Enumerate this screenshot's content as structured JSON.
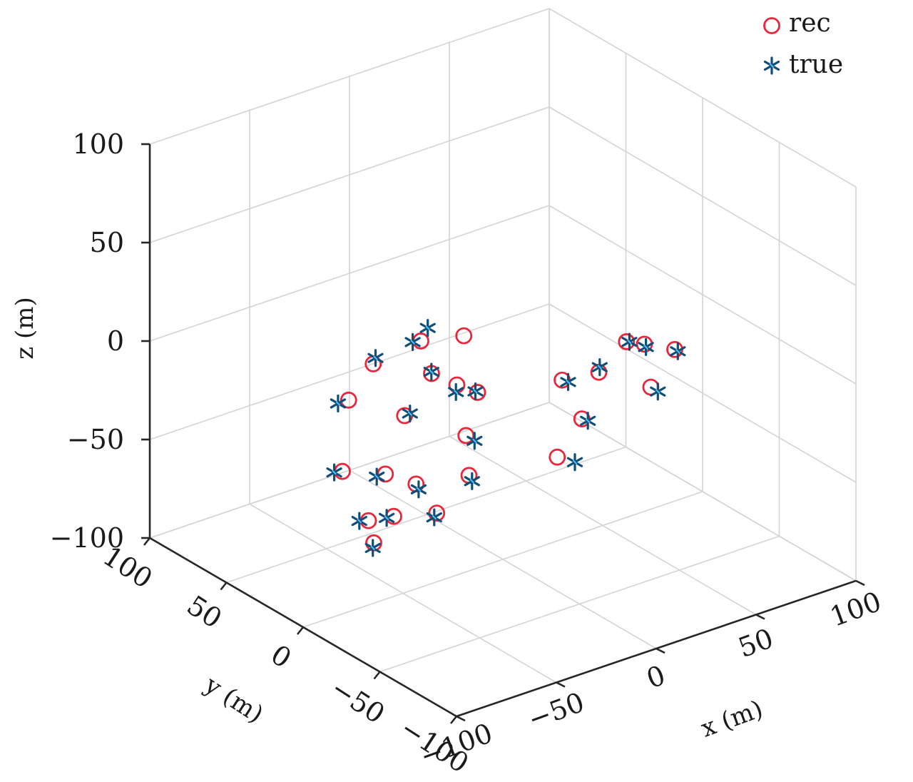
{
  "chart_data": {
    "type": "scatter",
    "projection": "3d",
    "title": "",
    "xlabel": "x (m)",
    "ylabel": "y (m)",
    "zlabel": "z (m)",
    "xlim": [
      -100,
      100
    ],
    "ylim": [
      -100,
      100
    ],
    "zlim": [
      -100,
      100
    ],
    "xticks": [
      -100,
      -50,
      0,
      50,
      100
    ],
    "yticks": [
      -100,
      -50,
      0,
      50,
      100
    ],
    "zticks": [
      -100,
      -50,
      0,
      50,
      100
    ],
    "xtick_labels": [
      "−100",
      "−50",
      "0",
      "50",
      "100"
    ],
    "ytick_labels": [
      "−100",
      "−50",
      "0",
      "50",
      "100"
    ],
    "ztick_labels": [
      "−100",
      "−50",
      "0",
      "50",
      "100"
    ],
    "grid": true,
    "legend_position": "top-right",
    "series": [
      {
        "name": "rec",
        "marker": "circle",
        "color": "#e8273a",
        "points": [
          [
            40,
            -60,
            20
          ],
          [
            44,
            -35,
            10
          ],
          [
            28,
            -60,
            5
          ],
          [
            25,
            -30,
            0
          ],
          [
            45,
            -22,
            5
          ],
          [
            5,
            -45,
            -10
          ],
          [
            -15,
            -55,
            -18
          ],
          [
            22,
            -10,
            -12
          ],
          [
            -30,
            -15,
            -20
          ],
          [
            -40,
            -30,
            -30
          ],
          [
            -60,
            -35,
            -40
          ],
          [
            -55,
            -15,
            -36
          ],
          [
            -70,
            -20,
            -45
          ],
          [
            -55,
            5,
            -40
          ],
          [
            -75,
            -10,
            -50
          ],
          [
            -80,
            -20,
            -55
          ],
          [
            -65,
            20,
            -42
          ],
          [
            -30,
            25,
            -28
          ],
          [
            -5,
            40,
            -22
          ],
          [
            0,
            30,
            -25
          ],
          [
            -5,
            10,
            -18
          ],
          [
            -35,
            55,
            -32
          ],
          [
            5,
            60,
            -18
          ],
          [
            15,
            45,
            -12
          ],
          [
            -15,
            65,
            -25
          ]
        ]
      },
      {
        "name": "true",
        "marker": "asterisk",
        "color": "#0e4f7a",
        "points": [
          [
            40,
            -62,
            20
          ],
          [
            44,
            -36,
            9
          ],
          [
            30,
            -62,
            3
          ],
          [
            27,
            -28,
            1
          ],
          [
            48,
            -20,
            3
          ],
          [
            8,
            -45,
            -12
          ],
          [
            -10,
            -60,
            -20
          ],
          [
            25,
            -10,
            -14
          ],
          [
            -28,
            -18,
            -22
          ],
          [
            -40,
            -32,
            -32
          ],
          [
            -62,
            -36,
            -41
          ],
          [
            -56,
            -18,
            -37
          ],
          [
            -72,
            -18,
            -46
          ],
          [
            -57,
            8,
            -42
          ],
          [
            -78,
            -8,
            -50
          ],
          [
            -82,
            -22,
            -56
          ],
          [
            -66,
            24,
            -44
          ],
          [
            -25,
            28,
            -30
          ],
          [
            -2,
            44,
            -24
          ],
          [
            -2,
            28,
            -27
          ],
          [
            -3,
            14,
            -20
          ],
          [
            -38,
            58,
            -34
          ],
          [
            4,
            64,
            -20
          ],
          [
            10,
            62,
            -14
          ],
          [
            -10,
            70,
            -26
          ]
        ]
      }
    ]
  }
}
